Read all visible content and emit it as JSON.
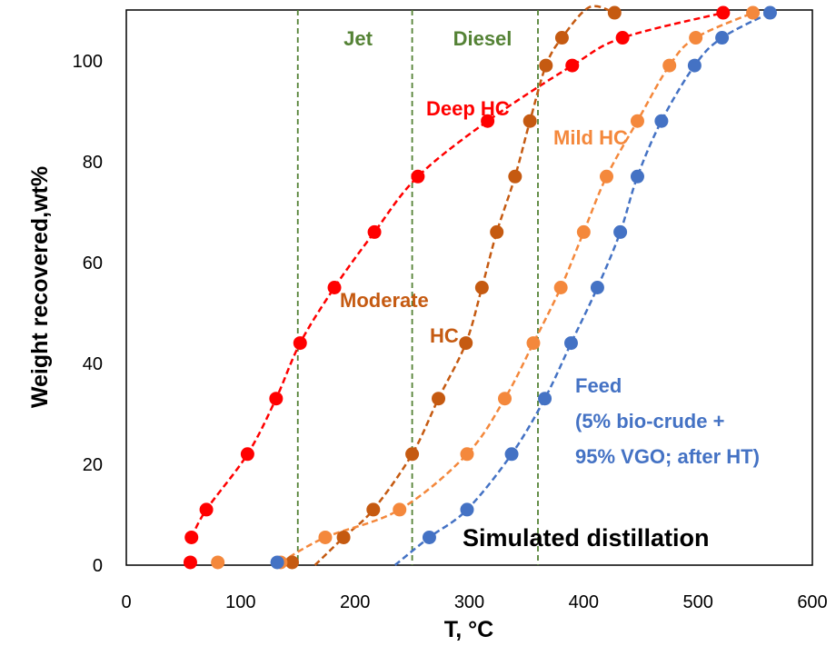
{
  "chart_data": {
    "type": "scatter",
    "title": "",
    "xlabel": "T, °C",
    "ylabel": "Weight recovered,wt%",
    "xlim": [
      0,
      600
    ],
    "ylim": [
      0,
      100
    ],
    "xticks": [
      "0",
      "100",
      "200",
      "300",
      "400",
      "500",
      "600"
    ],
    "yticks": [
      "0",
      "20",
      "40",
      "60",
      "80",
      "100"
    ],
    "grid": false,
    "legend": "none",
    "annotations": {
      "jet": "Jet",
      "diesel": "Diesel",
      "deep_hc": "Deep HC",
      "mild_hc": "Mild HC",
      "moderate_hc_1": "Moderate",
      "moderate_hc_2": "HC",
      "feed_1": "Feed",
      "feed_2": "(5% bio-crude +",
      "feed_3": "95% VGO; after HT)",
      "sim_dist": "Simulated distillation"
    },
    "cut_lines": [
      {
        "x": 150,
        "color": "#548235"
      },
      {
        "x": 250,
        "color": "#548235"
      },
      {
        "x": 360,
        "color": "#548235"
      }
    ],
    "series": [
      {
        "name": "Deep HC",
        "color": "#ff0000",
        "points": [
          [
            56,
            0.5
          ],
          [
            57,
            5
          ],
          [
            70,
            10
          ],
          [
            106,
            20
          ],
          [
            131,
            30
          ],
          [
            152,
            40
          ],
          [
            182,
            50
          ],
          [
            217,
            60
          ],
          [
            255,
            70
          ],
          [
            316,
            80
          ],
          [
            390,
            90
          ],
          [
            434,
            95
          ],
          [
            522,
            99.5
          ]
        ],
        "curve": [
          [
            57,
            5
          ],
          [
            70,
            10
          ],
          [
            106,
            20
          ],
          [
            131,
            30
          ],
          [
            152,
            40
          ],
          [
            182,
            50
          ],
          [
            217,
            60
          ],
          [
            255,
            70
          ],
          [
            316,
            80
          ],
          [
            390,
            90
          ],
          [
            434,
            95
          ],
          [
            522,
            99.5
          ]
        ]
      },
      {
        "name": "Moderate HC",
        "color": "#c55a11",
        "points": [
          [
            145,
            0.5
          ],
          [
            190,
            5
          ],
          [
            216,
            10
          ],
          [
            250,
            20
          ],
          [
            273,
            30
          ],
          [
            297,
            40
          ],
          [
            311,
            50
          ],
          [
            324,
            60
          ],
          [
            340,
            70
          ],
          [
            353,
            80
          ],
          [
            367,
            90
          ],
          [
            381,
            95
          ],
          [
            427,
            99.5
          ]
        ],
        "curve": [
          [
            165,
            0
          ],
          [
            190,
            5
          ],
          [
            216,
            10
          ],
          [
            250,
            20
          ],
          [
            273,
            30
          ],
          [
            297,
            40
          ],
          [
            311,
            50
          ],
          [
            324,
            60
          ],
          [
            340,
            70
          ],
          [
            353,
            80
          ],
          [
            367,
            90
          ],
          [
            381,
            95
          ],
          [
            405,
            100.5
          ],
          [
            427,
            99.5
          ]
        ]
      },
      {
        "name": "Mild HC",
        "color": "#f4883c",
        "points": [
          [
            80,
            0.5
          ],
          [
            135,
            0.5
          ],
          [
            174,
            5
          ],
          [
            239,
            10
          ],
          [
            298,
            20
          ],
          [
            331,
            30
          ],
          [
            356,
            40
          ],
          [
            380,
            50
          ],
          [
            400,
            60
          ],
          [
            420,
            70
          ],
          [
            447,
            80
          ],
          [
            475,
            90
          ],
          [
            498,
            95
          ],
          [
            548,
            99.5
          ]
        ],
        "curve": [
          [
            135,
            0.5
          ],
          [
            174,
            5
          ],
          [
            239,
            10
          ],
          [
            298,
            20
          ],
          [
            331,
            30
          ],
          [
            356,
            40
          ],
          [
            380,
            50
          ],
          [
            400,
            60
          ],
          [
            420,
            70
          ],
          [
            447,
            80
          ],
          [
            475,
            90
          ],
          [
            498,
            95
          ],
          [
            548,
            99.5
          ]
        ]
      },
      {
        "name": "Feed",
        "color": "#4472c4",
        "points": [
          [
            132,
            0.5
          ],
          [
            265,
            5
          ],
          [
            298,
            10
          ],
          [
            337,
            20
          ],
          [
            366,
            30
          ],
          [
            389,
            40
          ],
          [
            412,
            50
          ],
          [
            432,
            60
          ],
          [
            447,
            70
          ],
          [
            468,
            80
          ],
          [
            497,
            90
          ],
          [
            521,
            95
          ],
          [
            563,
            99.5
          ]
        ],
        "curve": [
          [
            235,
            0
          ],
          [
            265,
            5
          ],
          [
            298,
            10
          ],
          [
            337,
            20
          ],
          [
            366,
            30
          ],
          [
            389,
            40
          ],
          [
            412,
            50
          ],
          [
            432,
            60
          ],
          [
            447,
            70
          ],
          [
            468,
            80
          ],
          [
            497,
            90
          ],
          [
            521,
            95
          ],
          [
            563,
            99.5
          ]
        ]
      }
    ]
  }
}
